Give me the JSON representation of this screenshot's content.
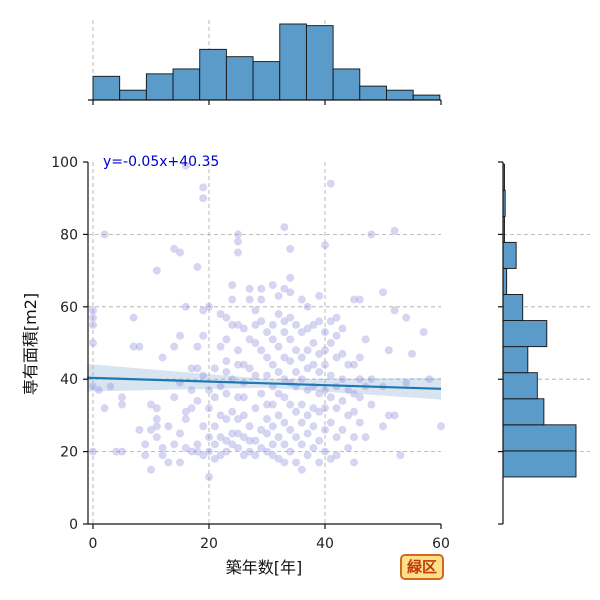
{
  "chart_data": [
    {
      "type": "scatter",
      "panel": "joint",
      "xlabel": "築年数[年]",
      "ylabel": "専有面積[m2]",
      "xlim": [
        -1,
        60
      ],
      "ylim": [
        0,
        100
      ],
      "x_ticks": [
        0,
        20,
        40,
        60
      ],
      "y_ticks": [
        0,
        20,
        40,
        60,
        80,
        100
      ],
      "grid": true,
      "annotation": "y=-0.05x+40.35",
      "regression": {
        "slope": -0.05,
        "intercept": 40.35,
        "ci_halfwidth_left": 3.8,
        "ci_halfwidth_mid": 1.2,
        "ci_halfwidth_right": 3.0
      },
      "points": [
        [
          0,
          20
        ],
        [
          0,
          50
        ],
        [
          0,
          55
        ],
        [
          0,
          57
        ],
        [
          0,
          59
        ],
        [
          0,
          38
        ],
        [
          1,
          37
        ],
        [
          2,
          80
        ],
        [
          2,
          32
        ],
        [
          3,
          38
        ],
        [
          4,
          20
        ],
        [
          5,
          35
        ],
        [
          5,
          33
        ],
        [
          5,
          20
        ],
        [
          7,
          57
        ],
        [
          7,
          49
        ],
        [
          8,
          49
        ],
        [
          8,
          26
        ],
        [
          9,
          22
        ],
        [
          9,
          19
        ],
        [
          10,
          26
        ],
        [
          10,
          33
        ],
        [
          10,
          15
        ],
        [
          11,
          70
        ],
        [
          11,
          29
        ],
        [
          11,
          32
        ],
        [
          11,
          27
        ],
        [
          11,
          24
        ],
        [
          12,
          46
        ],
        [
          12,
          21
        ],
        [
          12,
          19
        ],
        [
          13,
          27
        ],
        [
          13,
          17
        ],
        [
          14,
          76
        ],
        [
          14,
          49
        ],
        [
          14,
          35
        ],
        [
          14,
          22
        ],
        [
          15,
          75
        ],
        [
          15,
          52
        ],
        [
          15,
          39
        ],
        [
          15,
          25
        ],
        [
          15,
          17
        ],
        [
          16,
          99
        ],
        [
          16,
          60
        ],
        [
          16,
          31
        ],
        [
          16,
          29
        ],
        [
          16,
          21
        ],
        [
          17,
          43
        ],
        [
          17,
          37
        ],
        [
          17,
          32
        ],
        [
          17,
          20
        ],
        [
          18,
          71
        ],
        [
          18,
          49
        ],
        [
          18,
          43
        ],
        [
          18,
          34
        ],
        [
          18,
          22
        ],
        [
          18,
          20
        ],
        [
          19,
          93
        ],
        [
          19,
          90
        ],
        [
          19,
          59
        ],
        [
          19,
          52
        ],
        [
          19,
          41
        ],
        [
          19,
          27
        ],
        [
          19,
          19
        ],
        [
          20,
          60
        ],
        [
          20,
          37
        ],
        [
          20,
          32
        ],
        [
          20,
          24
        ],
        [
          20,
          20
        ],
        [
          20,
          13
        ],
        [
          21,
          43
        ],
        [
          21,
          35
        ],
        [
          21,
          27
        ],
        [
          21,
          22
        ],
        [
          21,
          18
        ],
        [
          22,
          58
        ],
        [
          22,
          49
        ],
        [
          22,
          38
        ],
        [
          22,
          30
        ],
        [
          22,
          24
        ],
        [
          22,
          19
        ],
        [
          23,
          57
        ],
        [
          23,
          51
        ],
        [
          23,
          45
        ],
        [
          23,
          42
        ],
        [
          23,
          36
        ],
        [
          23,
          29
        ],
        [
          23,
          23
        ],
        [
          23,
          20
        ],
        [
          24,
          66
        ],
        [
          24,
          62
        ],
        [
          24,
          55
        ],
        [
          24,
          40
        ],
        [
          24,
          31
        ],
        [
          24,
          25
        ],
        [
          24,
          22
        ],
        [
          25,
          80
        ],
        [
          25,
          78
        ],
        [
          25,
          75
        ],
        [
          25,
          55
        ],
        [
          25,
          48
        ],
        [
          25,
          44
        ],
        [
          25,
          35
        ],
        [
          25,
          29
        ],
        [
          25,
          25
        ],
        [
          25,
          21
        ],
        [
          26,
          54
        ],
        [
          26,
          44
        ],
        [
          26,
          39
        ],
        [
          26,
          35
        ],
        [
          26,
          30
        ],
        [
          26,
          24
        ],
        [
          26,
          19
        ],
        [
          27,
          65
        ],
        [
          27,
          62
        ],
        [
          27,
          51
        ],
        [
          27,
          43
        ],
        [
          27,
          27
        ],
        [
          27,
          23
        ],
        [
          27,
          20
        ],
        [
          28,
          59
        ],
        [
          28,
          55
        ],
        [
          28,
          50
        ],
        [
          28,
          41
        ],
        [
          28,
          32
        ],
        [
          28,
          23
        ],
        [
          28,
          19
        ],
        [
          29,
          65
        ],
        [
          29,
          62
        ],
        [
          29,
          56
        ],
        [
          29,
          48
        ],
        [
          29,
          36
        ],
        [
          29,
          26
        ],
        [
          29,
          21
        ],
        [
          30,
          53
        ],
        [
          30,
          46
        ],
        [
          30,
          41
        ],
        [
          30,
          33
        ],
        [
          30,
          29
        ],
        [
          30,
          25
        ],
        [
          30,
          20
        ],
        [
          31,
          66
        ],
        [
          31,
          55
        ],
        [
          31,
          51
        ],
        [
          31,
          44
        ],
        [
          31,
          38
        ],
        [
          31,
          33
        ],
        [
          31,
          27
        ],
        [
          31,
          22
        ],
        [
          31,
          19
        ],
        [
          32,
          63
        ],
        [
          32,
          58
        ],
        [
          32,
          49
        ],
        [
          32,
          42
        ],
        [
          32,
          36
        ],
        [
          32,
          30
        ],
        [
          32,
          24
        ],
        [
          32,
          18
        ],
        [
          33,
          82
        ],
        [
          33,
          65
        ],
        [
          33,
          56
        ],
        [
          33,
          53
        ],
        [
          33,
          46
        ],
        [
          33,
          40
        ],
        [
          33,
          35
        ],
        [
          33,
          28
        ],
        [
          33,
          22
        ],
        [
          33,
          17
        ],
        [
          34,
          76
        ],
        [
          34,
          68
        ],
        [
          34,
          64
        ],
        [
          34,
          57
        ],
        [
          34,
          51
        ],
        [
          34,
          45
        ],
        [
          34,
          39
        ],
        [
          34,
          33
        ],
        [
          34,
          26
        ],
        [
          34,
          20
        ],
        [
          35,
          55
        ],
        [
          35,
          48
        ],
        [
          35,
          42
        ],
        [
          35,
          38
        ],
        [
          35,
          31
        ],
        [
          35,
          24
        ],
        [
          35,
          17
        ],
        [
          36,
          62
        ],
        [
          36,
          53
        ],
        [
          36,
          46
        ],
        [
          36,
          40
        ],
        [
          36,
          33
        ],
        [
          36,
          28
        ],
        [
          36,
          22
        ],
        [
          36,
          15
        ],
        [
          37,
          60
        ],
        [
          37,
          54
        ],
        [
          37,
          48
        ],
        [
          37,
          43
        ],
        [
          37,
          37
        ],
        [
          37,
          30
        ],
        [
          37,
          25
        ],
        [
          37,
          19
        ],
        [
          38,
          55
        ],
        [
          38,
          50
        ],
        [
          38,
          44
        ],
        [
          38,
          38
        ],
        [
          38,
          32
        ],
        [
          38,
          27
        ],
        [
          38,
          21
        ],
        [
          39,
          63
        ],
        [
          39,
          56
        ],
        [
          39,
          47
        ],
        [
          39,
          42
        ],
        [
          39,
          36
        ],
        [
          39,
          31
        ],
        [
          39,
          23
        ],
        [
          39,
          17
        ],
        [
          40,
          77
        ],
        [
          40,
          53
        ],
        [
          40,
          48
        ],
        [
          40,
          44
        ],
        [
          40,
          37
        ],
        [
          40,
          32
        ],
        [
          40,
          26
        ],
        [
          40,
          20
        ],
        [
          41,
          94
        ],
        [
          41,
          56
        ],
        [
          41,
          50
        ],
        [
          41,
          41
        ],
        [
          41,
          35
        ],
        [
          41,
          28
        ],
        [
          41,
          18
        ],
        [
          42,
          57
        ],
        [
          42,
          52
        ],
        [
          42,
          46
        ],
        [
          42,
          38
        ],
        [
          42,
          32
        ],
        [
          42,
          24
        ],
        [
          42,
          19
        ],
        [
          43,
          54
        ],
        [
          43,
          47
        ],
        [
          43,
          40
        ],
        [
          43,
          34
        ],
        [
          43,
          26
        ],
        [
          44,
          44
        ],
        [
          44,
          37
        ],
        [
          44,
          30
        ],
        [
          44,
          21
        ],
        [
          45,
          62
        ],
        [
          45,
          44
        ],
        [
          45,
          36
        ],
        [
          45,
          31
        ],
        [
          45,
          24
        ],
        [
          45,
          17
        ],
        [
          46,
          62
        ],
        [
          46,
          46
        ],
        [
          46,
          40
        ],
        [
          46,
          35
        ],
        [
          46,
          28
        ],
        [
          47,
          51
        ],
        [
          47,
          38
        ],
        [
          47,
          24
        ],
        [
          48,
          80
        ],
        [
          48,
          40
        ],
        [
          48,
          33
        ],
        [
          50,
          64
        ],
        [
          50,
          38
        ],
        [
          50,
          27
        ],
        [
          51,
          48
        ],
        [
          51,
          30
        ],
        [
          52,
          81
        ],
        [
          52,
          59
        ],
        [
          52,
          30
        ],
        [
          53,
          19
        ],
        [
          54,
          57
        ],
        [
          54,
          39
        ],
        [
          55,
          47
        ],
        [
          57,
          53
        ],
        [
          58,
          40
        ],
        [
          60,
          27
        ]
      ]
    },
    {
      "type": "bar",
      "panel": "x-marginal-histogram",
      "orientation": "vertical",
      "bin_edges": [
        0,
        4.6,
        9.2,
        13.8,
        18.4,
        23,
        27.6,
        32.2,
        36.8,
        41.4,
        46,
        50.6,
        55.2,
        59.8
      ],
      "counts": [
        29,
        12,
        32,
        38,
        62,
        53,
        47,
        93,
        91,
        38,
        17,
        12,
        6
      ]
    },
    {
      "type": "bar",
      "panel": "y-marginal-histogram",
      "orientation": "horizontal",
      "bin_edges": [
        13,
        20.2,
        27.4,
        34.6,
        41.8,
        49,
        56.2,
        63.4,
        70.6,
        77.8,
        85,
        92.2,
        99.4
      ],
      "counts": [
        100,
        100,
        56,
        47,
        34,
        60,
        27,
        5,
        18,
        2,
        3,
        2
      ]
    }
  ],
  "badge": {
    "label": "緑区",
    "background": "#ffe08a",
    "border": "#d2691e",
    "text_color": "#c0390b"
  },
  "colors": {
    "points": "#8080d8",
    "regression": "#1f77b4",
    "histogram": "#5b9bc9",
    "ci_band": "#8fb4d8"
  }
}
